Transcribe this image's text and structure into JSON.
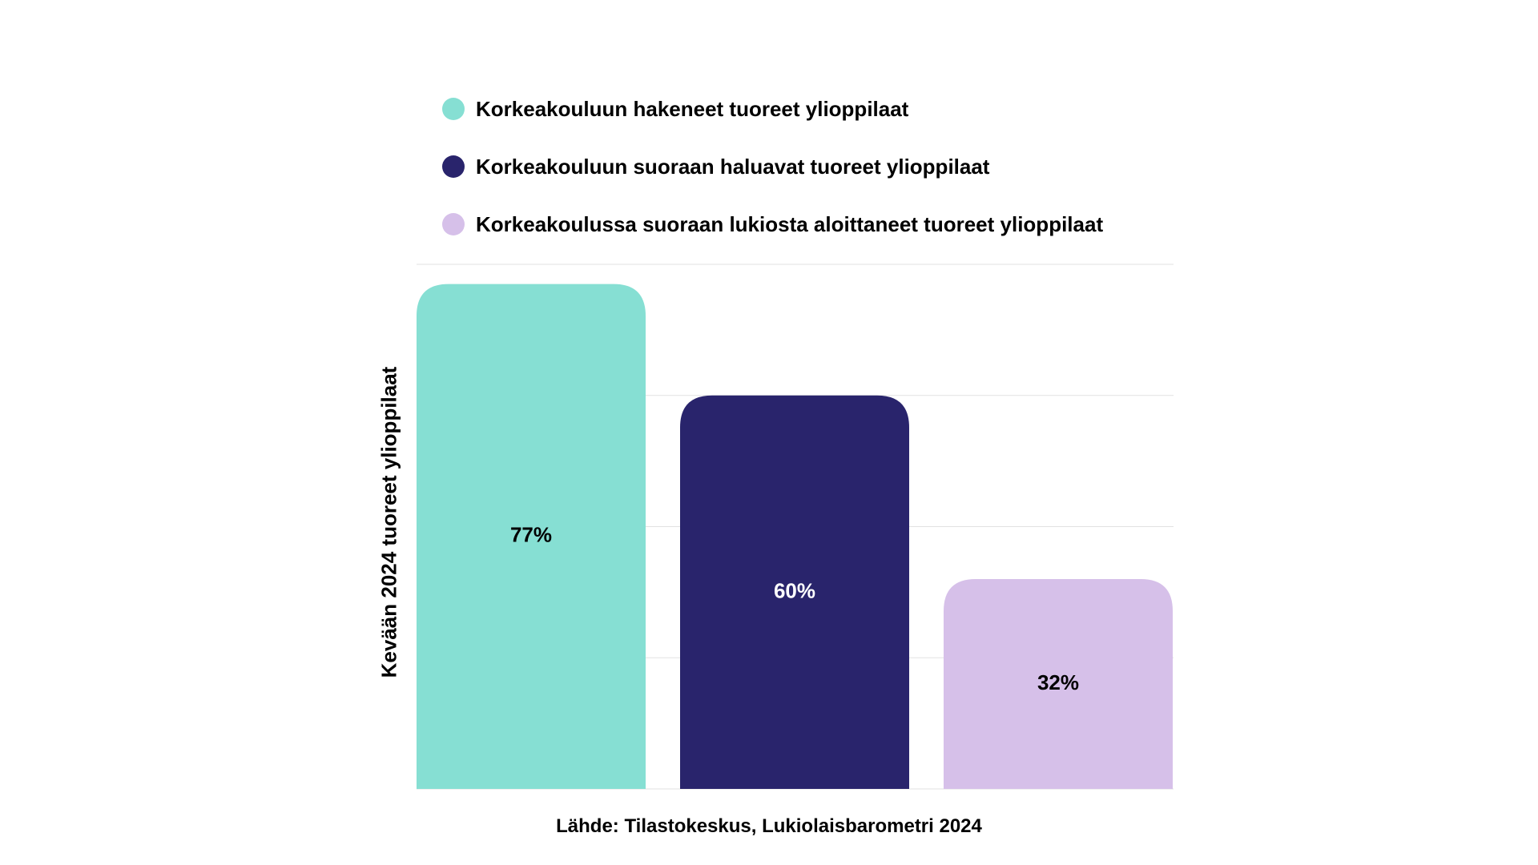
{
  "chart_data": {
    "type": "bar",
    "categories": [
      "Korkeakouluun hakeneet tuoreet ylioppilaat",
      "Korkeakouluun suoraan haluavat tuoreet ylioppilaat",
      "Korkeakoulussa suoraan lukiosta aloittaneet tuoreet ylioppilaat"
    ],
    "values": [
      77,
      60,
      32
    ],
    "value_labels": [
      "77%",
      "60%",
      "32%"
    ],
    "colors": [
      "#86DFD3",
      "#29246C",
      "#D6C0E9"
    ],
    "label_colors": [
      "#000000",
      "#ffffff",
      "#000000"
    ],
    "ylabel": "Kevään 2024 tuoreet ylioppilaat",
    "ylim": [
      0,
      80
    ],
    "grid": true,
    "legend_position": "top",
    "source": "Lähde: Tilastokeskus, Lukiolaisbarometri 2024"
  }
}
